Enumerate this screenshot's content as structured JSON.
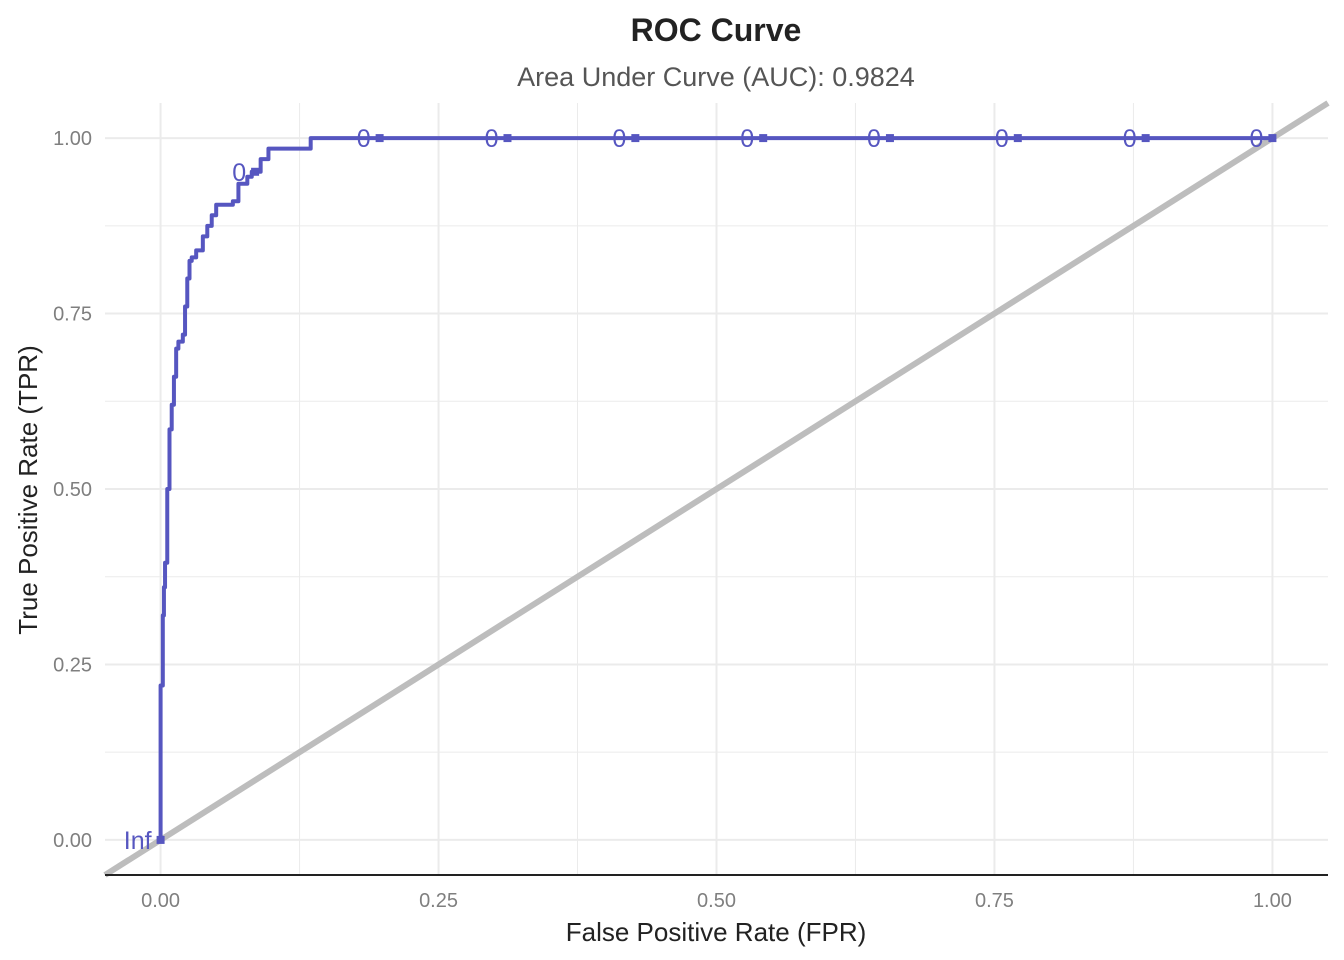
{
  "chart_data": {
    "type": "line",
    "title": "ROC Curve",
    "subtitle": "Area Under Curve (AUC): 0.9824",
    "xlabel": "False Positive Rate (FPR)",
    "ylabel": "True Positive Rate (TPR)",
    "xlim": [
      -0.05,
      1.05
    ],
    "ylim": [
      -0.05,
      1.05
    ],
    "x_ticks": [
      0,
      0.25,
      0.5,
      0.75,
      1
    ],
    "y_ticks": [
      0,
      0.25,
      0.5,
      0.75,
      1
    ],
    "x_tick_labels": [
      "0.00",
      "0.25",
      "0.50",
      "0.75",
      "1.00"
    ],
    "y_tick_labels": [
      "0.00",
      "0.25",
      "0.50",
      "0.75",
      "1.00"
    ],
    "grid": true,
    "colors": {
      "roc": "#5656c0",
      "reference": "#bdbdbd",
      "grid": "#ebebeb",
      "axis_line": "#222222"
    },
    "series": [
      {
        "values_x": [
          0,
          0,
          0.002,
          0.002,
          0.003,
          0.003,
          0.004,
          0.004,
          0.006,
          0.006,
          0.008,
          0.008,
          0.01,
          0.01,
          0.012,
          0.012,
          0.014,
          0.014,
          0.016,
          0.016,
          0.02,
          0.02,
          0.022,
          0.022,
          0.024,
          0.024,
          0.026,
          0.026,
          0.028,
          0.028,
          0.032,
          0.032,
          0.038,
          0.038,
          0.042,
          0.042,
          0.046,
          0.046,
          0.05,
          0.05,
          0.065,
          0.065,
          0.07,
          0.07,
          0.078,
          0.078,
          0.082,
          0.082,
          0.09,
          0.09,
          0.097,
          0.097,
          0.135,
          0.135,
          1.0
        ],
        "values_y": [
          0,
          0.22,
          0.22,
          0.32,
          0.32,
          0.36,
          0.36,
          0.395,
          0.395,
          0.5,
          0.5,
          0.585,
          0.585,
          0.62,
          0.62,
          0.66,
          0.66,
          0.7,
          0.7,
          0.71,
          0.71,
          0.72,
          0.72,
          0.76,
          0.76,
          0.8,
          0.8,
          0.825,
          0.825,
          0.83,
          0.83,
          0.84,
          0.84,
          0.86,
          0.86,
          0.875,
          0.875,
          0.89,
          0.89,
          0.905,
          0.905,
          0.91,
          0.91,
          0.935,
          0.935,
          0.945,
          0.945,
          0.952,
          0.952,
          0.97,
          0.97,
          0.985,
          0.985,
          1.0,
          1.0
        ]
      }
    ],
    "reference_line": {
      "x": [
        -0.05,
        1.05
      ],
      "y": [
        -0.05,
        1.05
      ]
    },
    "threshold_points": [
      {
        "x": 0.0,
        "y": 0.0,
        "label": "Inf"
      },
      {
        "x": 0.085,
        "y": 0.952,
        "label": "0"
      },
      {
        "x": 0.197,
        "y": 1.0,
        "label": "0"
      },
      {
        "x": 0.312,
        "y": 1.0,
        "label": "0"
      },
      {
        "x": 0.427,
        "y": 1.0,
        "label": "0"
      },
      {
        "x": 0.542,
        "y": 1.0,
        "label": "0"
      },
      {
        "x": 0.656,
        "y": 1.0,
        "label": "0"
      },
      {
        "x": 0.771,
        "y": 1.0,
        "label": "0"
      },
      {
        "x": 0.886,
        "y": 1.0,
        "label": "0"
      },
      {
        "x": 1.0,
        "y": 1.0,
        "label": "0"
      }
    ]
  }
}
